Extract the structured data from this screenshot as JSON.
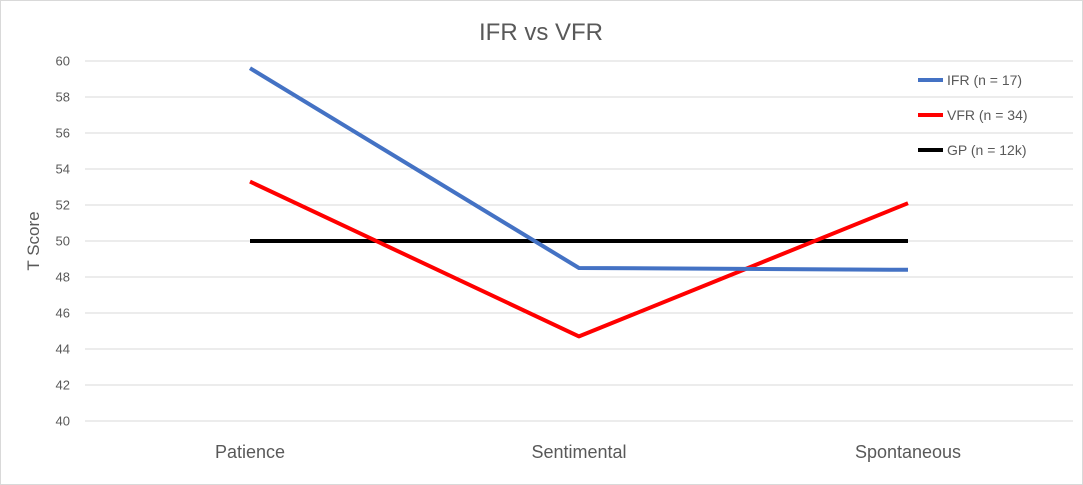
{
  "chart_data": {
    "type": "line",
    "title": "IFR vs VFR",
    "xlabel": "",
    "ylabel": "T Score",
    "categories": [
      "Patience",
      "Sentimental",
      "Spontaneous"
    ],
    "ylim": [
      40,
      60
    ],
    "yticks": [
      40,
      42,
      44,
      46,
      48,
      50,
      52,
      54,
      56,
      58,
      60
    ],
    "grid": true,
    "legend_position": "top-right",
    "series": [
      {
        "name": "IFR (n = 17)",
        "color": "#4472c4",
        "values": [
          59.6,
          48.5,
          48.4
        ]
      },
      {
        "name": "VFR (n = 34)",
        "color": "#ff0000",
        "values": [
          53.3,
          44.7,
          52.1
        ]
      },
      {
        "name": "GP (n = 12k)",
        "color": "#000000",
        "values": [
          50,
          50,
          50
        ]
      }
    ]
  }
}
